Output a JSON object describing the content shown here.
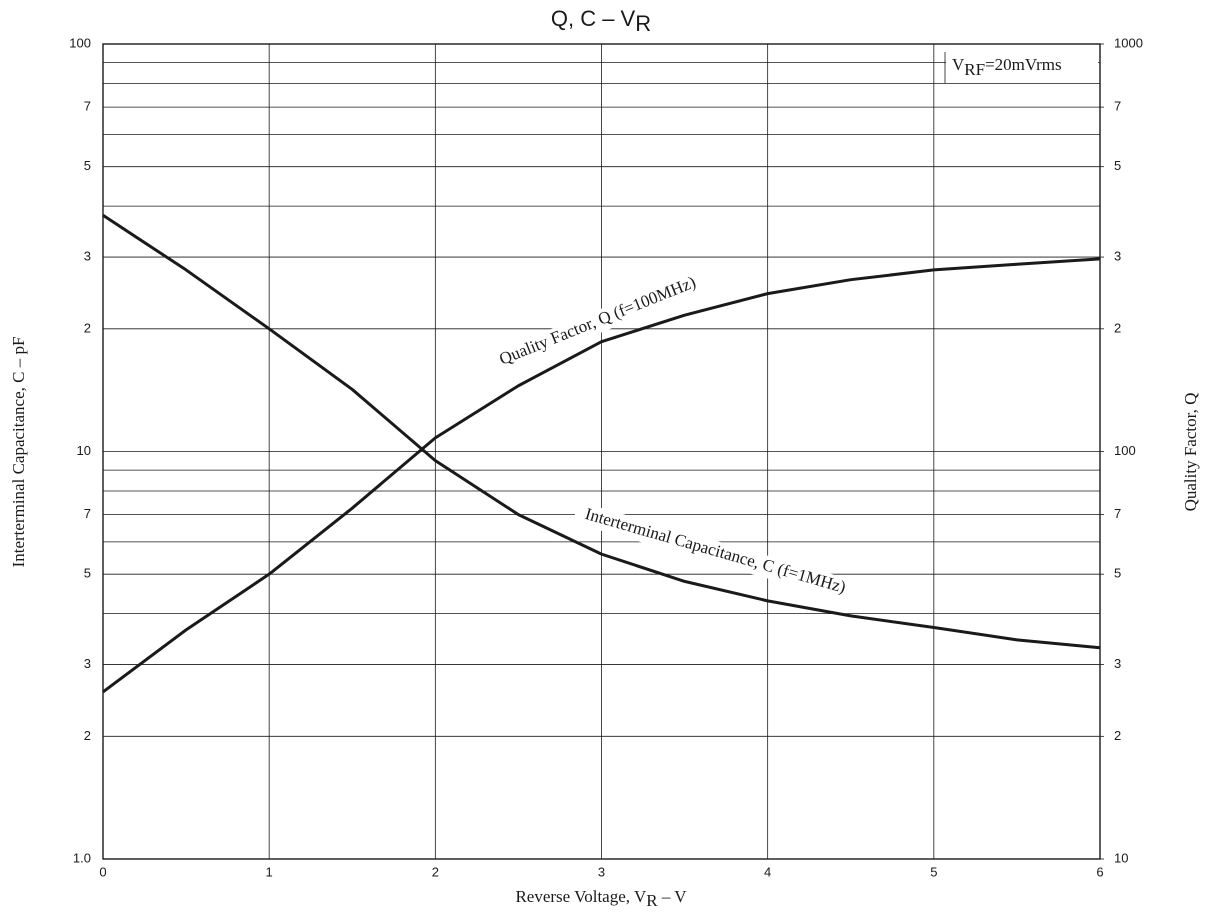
{
  "chart_data": {
    "type": "line",
    "title": [
      "Q,  C  –  V",
      "R"
    ],
    "xlabel": [
      "Reverse Voltage, V",
      "R",
      "  –  V"
    ],
    "ylabel": "Interterminal Capacitance, C  –  pF",
    "y2label": "Quality Factor, Q",
    "annotation": [
      "V",
      "RF",
      "=20mVrms"
    ],
    "x": [
      0,
      0.5,
      1,
      1.5,
      2,
      2.5,
      3,
      3.5,
      4,
      4.5,
      5,
      5.5,
      6
    ],
    "series": [
      {
        "name": "Interterminal Capacitance, C (f=1MHz)",
        "color": "#1a1a1a",
        "axis": "y",
        "values": [
          38,
          27.9,
          20,
          14.2,
          9.5,
          7.0,
          5.6,
          4.8,
          4.3,
          3.95,
          3.7,
          3.45,
          3.3
        ]
      },
      {
        "name": "Quality Factor, Q (f=100MHz)",
        "color": "#1a1a1a",
        "axis": "y2",
        "values": [
          25.7,
          36.5,
          50,
          72.6,
          108,
          145,
          186,
          216,
          244,
          264,
          279,
          288,
          297
        ]
      }
    ],
    "xlim": [
      0,
      6
    ],
    "xticks": [
      0,
      1,
      2,
      3,
      4,
      5,
      6
    ],
    "ylim": [
      1,
      100
    ],
    "log_y": true,
    "yticks": [
      {
        "value": 1,
        "label": "1.0"
      },
      2,
      3,
      5,
      7,
      10,
      {
        "value": 20,
        "label": "2"
      },
      {
        "value": 30,
        "label": "3"
      },
      {
        "value": 50,
        "label": "5"
      },
      {
        "value": 70,
        "label": "7"
      },
      100
    ],
    "yminor_grid": [
      4,
      6,
      8,
      9,
      40,
      60,
      80,
      90
    ],
    "y2lim": [
      10,
      1000
    ],
    "y2ticks": [
      10,
      {
        "value": 20,
        "label": "2"
      },
      {
        "value": 30,
        "label": "3"
      },
      {
        "value": 50,
        "label": "5"
      },
      {
        "value": 70,
        "label": "7"
      },
      100,
      {
        "value": 200,
        "label": "2"
      },
      {
        "value": 300,
        "label": "3"
      },
      {
        "value": 500,
        "label": "5"
      },
      {
        "value": 700,
        "label": "7"
      },
      1000
    ],
    "grid": true
  }
}
